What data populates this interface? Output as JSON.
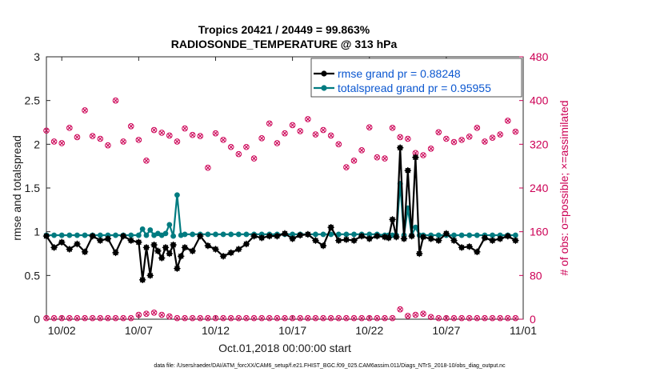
{
  "chart_data": {
    "type": "line",
    "title": "Tropics 20421 / 20449 = 99.863%",
    "subtitle": "RADIOSONDE_TEMPERATURE @ 313 hPa",
    "xlabel": "Oct.01,2018 00:00:00 start",
    "ylabel": "rmse and totalspread",
    "ylabel_right": "# of obs: o=possible; ×=assimilated",
    "footnote": "data file: /Users/raeder/DAI/ATM_forcXX/CAM6_setup/f.e21.FHIST_BGC.f09_025.CAM6assim.011/Diags_NTrS_2018-10/obs_diag_output.nc",
    "xlim": [
      1.0,
      32.0
    ],
    "ylim": [
      0,
      3
    ],
    "ylim_right": [
      0,
      480
    ],
    "x_ticks": [
      2,
      7,
      12,
      17,
      22,
      27,
      32
    ],
    "x_tick_labels": [
      "10/02",
      "10/07",
      "10/12",
      "10/17",
      "10/22",
      "10/27",
      "11/01"
    ],
    "y_ticks": [
      0,
      0.5,
      1,
      1.5,
      2,
      2.5,
      3
    ],
    "y_tick_labels": [
      "0",
      "0.5",
      "1",
      "1.5",
      "2",
      "2.5",
      "3"
    ],
    "y_ticks_right": [
      0,
      80,
      160,
      240,
      320,
      400,
      480
    ],
    "y_tick_labels_right": [
      "0",
      "80",
      "160",
      "240",
      "320",
      "400",
      "480"
    ],
    "colors": {
      "rmse": "#000000",
      "spread": "#007b80",
      "obs": "#cc0055",
      "legend_text": "#0b57d0"
    },
    "series": [
      {
        "name": "rmse grand pr = 0.88248",
        "x": [
          1.0,
          1.5,
          2.0,
          2.5,
          3.0,
          3.5,
          4.0,
          4.5,
          5.0,
          5.5,
          6.0,
          6.5,
          7.0,
          7.25,
          7.5,
          7.75,
          8.0,
          8.25,
          8.5,
          8.75,
          9.0,
          9.25,
          9.5,
          9.75,
          10.0,
          10.5,
          11.0,
          11.5,
          12.0,
          12.5,
          13.0,
          13.5,
          14.0,
          14.5,
          15.0,
          15.5,
          16.0,
          16.5,
          17.0,
          17.5,
          18.0,
          18.5,
          19.0,
          19.5,
          20.0,
          20.5,
          21.0,
          21.5,
          22.0,
          22.5,
          23.0,
          23.25,
          23.5,
          23.75,
          24.0,
          24.25,
          24.5,
          24.75,
          25.0,
          25.25,
          25.5,
          26.0,
          26.5,
          27.0,
          27.5,
          28.0,
          28.5,
          29.0,
          29.5,
          30.0,
          30.5,
          31.0,
          31.5
        ],
        "y": [
          0.95,
          0.82,
          0.88,
          0.8,
          0.86,
          0.77,
          0.95,
          0.9,
          0.92,
          0.76,
          0.95,
          0.9,
          0.88,
          0.45,
          0.82,
          0.5,
          0.85,
          0.78,
          0.7,
          0.82,
          0.75,
          0.85,
          0.58,
          0.72,
          0.82,
          0.78,
          0.95,
          0.84,
          0.8,
          0.72,
          0.76,
          0.8,
          0.86,
          0.95,
          0.93,
          0.95,
          0.95,
          0.98,
          0.92,
          0.96,
          0.97,
          0.9,
          0.84,
          1.05,
          0.9,
          0.91,
          0.9,
          0.95,
          0.92,
          0.95,
          0.94,
          0.93,
          1.14,
          0.94,
          1.96,
          0.92,
          1.7,
          0.95,
          1.85,
          0.75,
          0.94,
          0.92,
          0.9,
          0.98,
          0.9,
          0.82,
          0.83,
          0.77,
          0.93,
          0.9,
          0.92,
          0.95,
          0.9
        ],
        "color": "#000000"
      },
      {
        "name": "totalspread grand pr = 0.95955",
        "x": [
          1.0,
          1.5,
          2.0,
          2.5,
          3.0,
          3.5,
          4.0,
          4.5,
          5.0,
          5.5,
          6.0,
          6.5,
          7.0,
          7.25,
          7.5,
          7.75,
          8.0,
          8.25,
          8.5,
          8.75,
          9.0,
          9.25,
          9.5,
          9.75,
          10.0,
          10.5,
          11.0,
          11.5,
          12.0,
          12.5,
          13.0,
          13.5,
          14.0,
          14.5,
          15.0,
          15.5,
          16.0,
          16.5,
          17.0,
          17.5,
          18.0,
          18.5,
          19.0,
          19.5,
          20.0,
          20.5,
          21.0,
          21.5,
          22.0,
          22.5,
          23.0,
          23.25,
          23.5,
          23.75,
          24.0,
          24.25,
          24.5,
          24.75,
          25.0,
          25.25,
          25.5,
          26.0,
          26.5,
          27.0,
          27.5,
          28.0,
          28.5,
          29.0,
          29.5,
          30.0,
          30.5,
          31.0,
          31.5
        ],
        "y": [
          0.96,
          0.96,
          0.96,
          0.96,
          0.96,
          0.96,
          0.96,
          0.96,
          0.96,
          0.96,
          0.96,
          0.96,
          0.96,
          1.03,
          0.96,
          1.02,
          0.96,
          0.98,
          0.96,
          0.98,
          1.08,
          0.95,
          1.42,
          0.96,
          0.97,
          0.97,
          0.97,
          0.97,
          0.97,
          0.97,
          0.97,
          0.97,
          0.97,
          0.97,
          0.97,
          0.97,
          0.97,
          0.97,
          0.97,
          0.97,
          0.97,
          0.97,
          0.97,
          0.97,
          0.97,
          0.97,
          0.97,
          0.97,
          0.97,
          0.97,
          0.96,
          0.96,
          0.96,
          0.96,
          1.55,
          0.96,
          1.27,
          0.96,
          1.05,
          0.96,
          0.96,
          0.96,
          0.96,
          0.96,
          0.96,
          0.96,
          0.96,
          0.96,
          0.96,
          0.96,
          0.96,
          0.96,
          0.96
        ],
        "color": "#007b80"
      }
    ],
    "obs_possible": {
      "x": [
        1.0,
        1.5,
        2.0,
        2.5,
        3.0,
        3.5,
        4.0,
        4.5,
        5.0,
        5.5,
        6.0,
        6.5,
        7.0,
        7.5,
        8.0,
        8.5,
        9.0,
        9.5,
        10.0,
        10.5,
        11.0,
        11.5,
        12.0,
        12.5,
        13.0,
        13.5,
        14.0,
        14.5,
        15.0,
        15.5,
        16.0,
        16.5,
        17.0,
        17.5,
        18.0,
        18.5,
        19.0,
        19.5,
        20.0,
        20.5,
        21.0,
        21.5,
        22.0,
        22.5,
        23.0,
        23.5,
        24.0,
        24.5,
        25.0,
        25.5,
        26.0,
        26.5,
        27.0,
        27.5,
        28.0,
        28.5,
        29.0,
        29.5,
        30.0,
        30.5,
        31.0,
        31.5
      ],
      "y": [
        345,
        325,
        322,
        350,
        333,
        382,
        335,
        330,
        318,
        400,
        325,
        353,
        328,
        290,
        346,
        341,
        336,
        325,
        349,
        337,
        335,
        277,
        340,
        328,
        315,
        302,
        315,
        294,
        331,
        358,
        322,
        340,
        355,
        344,
        366,
        338,
        346,
        336,
        320,
        278,
        290,
        309,
        351,
        296,
        294,
        350,
        333,
        330,
        304,
        300,
        312,
        342,
        330,
        324,
        328,
        334,
        350,
        325,
        332,
        338,
        363,
        343
      ],
      "color": "#cc0055"
    },
    "obs_possible_low": {
      "x": [
        1.0,
        1.5,
        2.0,
        2.5,
        3.0,
        3.5,
        4.0,
        4.5,
        5.0,
        5.5,
        6.0,
        6.5,
        7.0,
        7.5,
        8.0,
        8.5,
        9.0,
        9.5,
        10.0,
        10.5,
        11.0,
        11.5,
        12.0,
        12.5,
        13.0,
        13.5,
        14.0,
        14.5,
        15.0,
        15.5,
        16.0,
        16.5,
        17.0,
        17.5,
        18.0,
        18.5,
        19.0,
        19.5,
        20.0,
        20.5,
        21.0,
        21.5,
        22.0,
        22.5,
        23.0,
        23.5,
        24.0,
        24.5,
        25.0,
        25.5,
        26.0,
        26.5,
        27.0,
        27.5,
        28.0,
        28.5,
        29.0,
        29.5,
        30.0,
        30.5,
        31.0,
        31.5
      ],
      "y": [
        2,
        2,
        2,
        2,
        2,
        2,
        2,
        2,
        2,
        2,
        2,
        2,
        8,
        10,
        12,
        8,
        5,
        2,
        2,
        2,
        2,
        2,
        2,
        2,
        2,
        2,
        2,
        2,
        2,
        2,
        2,
        2,
        2,
        2,
        2,
        2,
        2,
        2,
        2,
        2,
        2,
        2,
        2,
        2,
        2,
        2,
        18,
        6,
        8,
        10,
        4,
        2,
        2,
        2,
        2,
        2,
        2,
        2,
        2,
        2,
        2,
        2
      ],
      "color": "#cc0055"
    },
    "legend": {
      "position": "top-right",
      "entries": [
        "rmse grand pr = 0.88248",
        "totalspread grand pr = 0.95955"
      ]
    }
  }
}
